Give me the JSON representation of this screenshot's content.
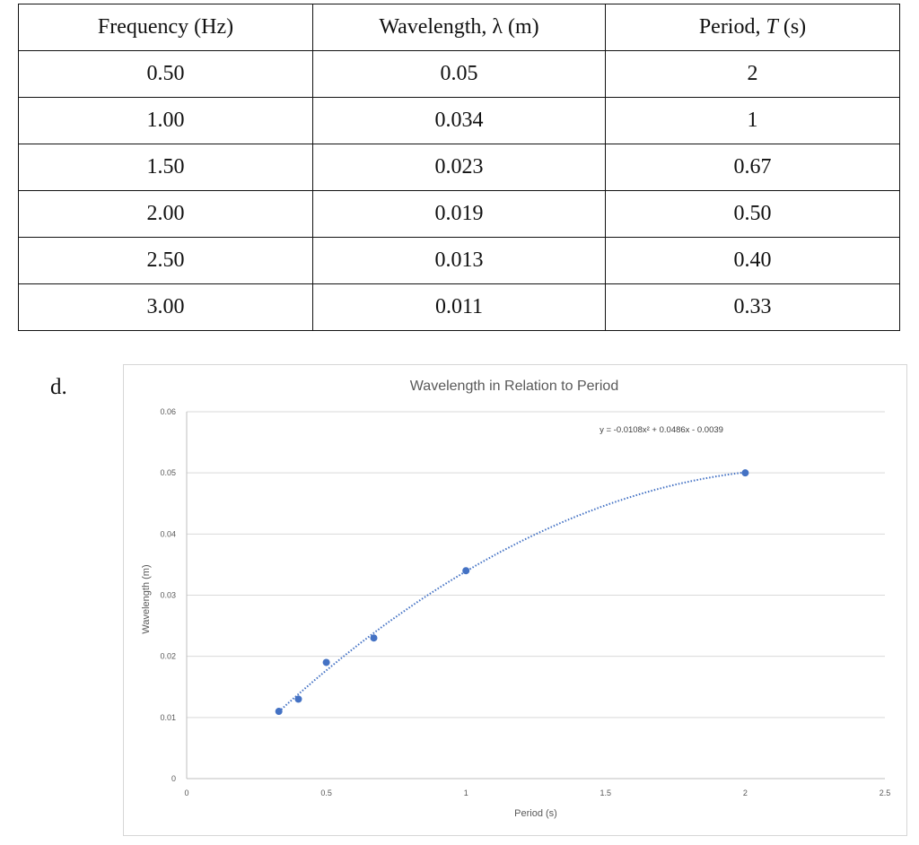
{
  "table": {
    "headers": {
      "frequency": {
        "label": "Frequency (Hz)"
      },
      "wavelength": {
        "label": "Wavelength, λ (m)"
      },
      "period": {
        "label": "Period, ",
        "symbol": "T",
        "unit": " (s)"
      }
    },
    "rows": [
      {
        "frequency": "0.50",
        "wavelength": "0.05",
        "period": "2"
      },
      {
        "frequency": "1.00",
        "wavelength": "0.034",
        "period": "1"
      },
      {
        "frequency": "1.50",
        "wavelength": "0.023",
        "period": "0.67"
      },
      {
        "frequency": "2.00",
        "wavelength": "0.019",
        "period": "0.50"
      },
      {
        "frequency": "2.50",
        "wavelength": "0.013",
        "period": "0.40"
      },
      {
        "frequency": "3.00",
        "wavelength": "0.011",
        "period": "0.33"
      }
    ]
  },
  "part_label": "d.",
  "chart_data": {
    "type": "scatter",
    "title": "Wavelength in Relation to Period",
    "xlabel": "Period (s)",
    "ylabel": "Wavelength (m)",
    "xlim": [
      0,
      2.5
    ],
    "ylim": [
      0,
      0.06
    ],
    "xticks": [
      "0",
      "0.5",
      "1",
      "1.5",
      "2",
      "2.5"
    ],
    "yticks": [
      "0",
      "0.01",
      "0.02",
      "0.03",
      "0.04",
      "0.05",
      "0.06"
    ],
    "grid": true,
    "legend": "none",
    "marker_color": "#4472C4",
    "points": [
      {
        "x": 2,
        "y": 0.05
      },
      {
        "x": 1,
        "y": 0.034
      },
      {
        "x": 0.67,
        "y": 0.023
      },
      {
        "x": 0.5,
        "y": 0.019
      },
      {
        "x": 0.4,
        "y": 0.013
      },
      {
        "x": 0.33,
        "y": 0.011
      }
    ],
    "trendline": {
      "kind": "polynomial",
      "coefficients": [
        -0.0108,
        0.0486,
        -0.0039
      ],
      "x_range": [
        0.33,
        2
      ],
      "style": "dotted",
      "equation_label": "y = -0.0108x² + 0.0486x - 0.0039"
    }
  }
}
